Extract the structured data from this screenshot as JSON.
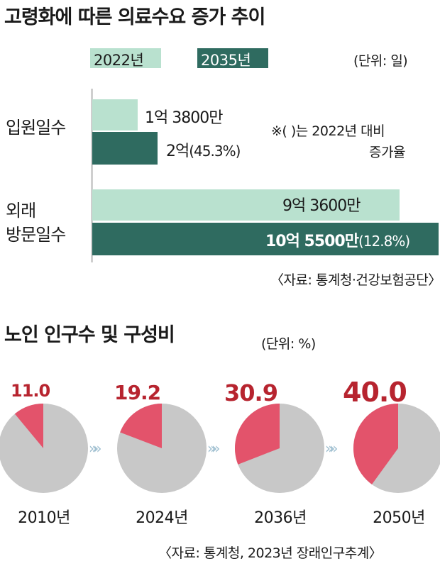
{
  "colors": {
    "bar_2022": "#b9e1cf",
    "bar_2035": "#2f6b60",
    "axis_line": "#cfcfcf",
    "pie_base": "#c8c8c8",
    "pie_share": "#e3536b",
    "pie_label": "#b7242f",
    "chevron": "#9fbfd0"
  },
  "top": {
    "title": "고령화에 따른 의료수요 증가 추이",
    "unit": "(단위: 일)",
    "note_line1": "※(   )는 2022년 대비",
    "note_line2": "증가율",
    "source": "〈자료: 통계청·건강보험공단〉"
  },
  "bottom": {
    "title": "노인 인구수 및 구성비",
    "unit": "(단위: %)",
    "source": "〈자료: 통계청, 2023년 장래인구추계〉"
  },
  "chart_data": [
    {
      "type": "bar",
      "orientation": "horizontal",
      "title": "고령화에 따른 의료수요 증가 추이",
      "unit": "일",
      "categories": [
        "입원일수",
        "외래 방문일수"
      ],
      "category_lines": [
        [
          "입원일수"
        ],
        [
          "외래",
          "방문일수"
        ]
      ],
      "series": [
        {
          "name": "2022년",
          "values": [
            138000000,
            936000000
          ],
          "labels": [
            "1억 3800만",
            "9억 3600만"
          ],
          "pct": [
            "",
            ""
          ]
        },
        {
          "name": "2035년",
          "values": [
            200000000,
            1055000000
          ],
          "labels": [
            "2억",
            "10억 5500만"
          ],
          "pct": [
            "(45.3%)",
            "(12.8%)"
          ]
        }
      ],
      "legend_position": "top"
    },
    {
      "type": "pie",
      "title": "노인 인구수 및 구성비",
      "unit": "%",
      "categories": [
        "2010년",
        "2024년",
        "2036년",
        "2050년"
      ],
      "values": [
        11.0,
        19.2,
        30.9,
        40.0
      ],
      "value_labels": [
        "11.0",
        "19.2",
        "30.9",
        "40.0"
      ]
    }
  ]
}
